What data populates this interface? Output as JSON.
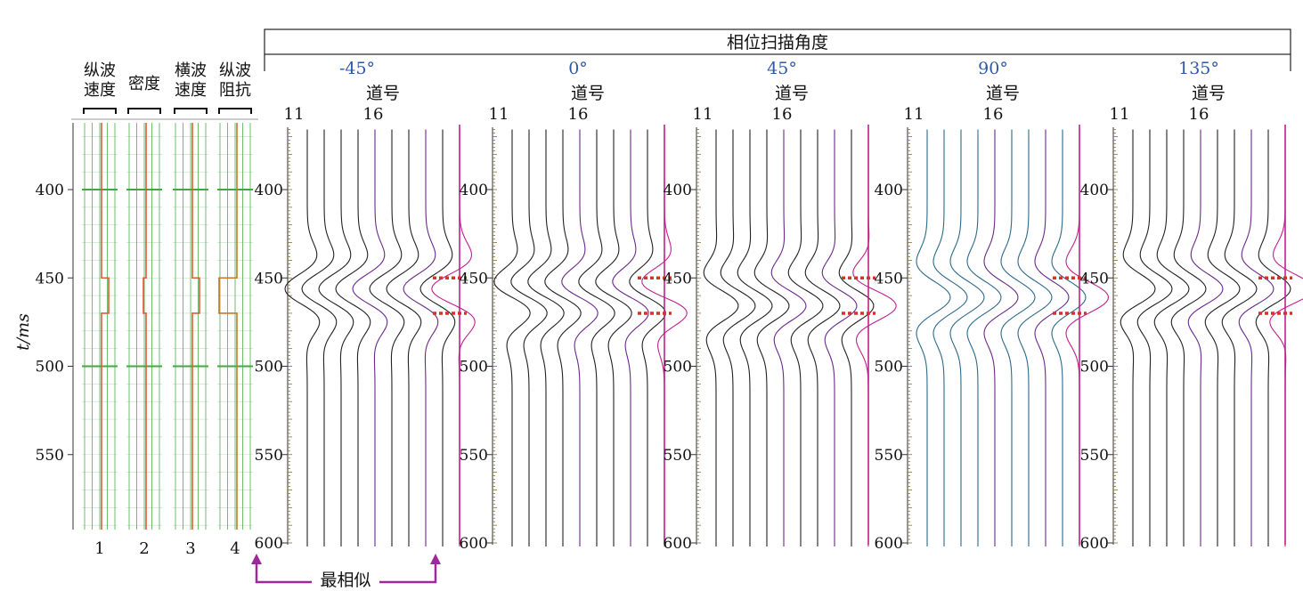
{
  "header": {
    "title": "相位扫描角度"
  },
  "y_axis": {
    "label": "t/ms",
    "ticks": [
      400,
      450,
      500,
      550,
      600
    ],
    "range": [
      363,
      602
    ]
  },
  "logs": {
    "columns": [
      {
        "label": "纵波\n速度",
        "number": "1"
      },
      {
        "label": "密度",
        "number": "2"
      },
      {
        "label": "横波\n速度",
        "number": "3"
      },
      {
        "label": "纵波\n阻抗",
        "number": "4"
      }
    ],
    "layer_top_ms": 450,
    "layer_bottom_ms": 470,
    "green_color": "#3faa3f",
    "red_color": "#e05a3a"
  },
  "panels": [
    {
      "angle": "-45°",
      "trace_label": "道号",
      "trace_ticks": [
        "11",
        "16"
      ],
      "phase_deg": -45
    },
    {
      "angle": "0°",
      "trace_label": "道号",
      "trace_ticks": [
        "11",
        "16"
      ],
      "phase_deg": 0
    },
    {
      "angle": "45°",
      "trace_label": "道号",
      "trace_ticks": [
        "11",
        "16"
      ],
      "phase_deg": 45
    },
    {
      "angle": "90°",
      "trace_label": "道号",
      "trace_ticks": [
        "11",
        "16"
      ],
      "phase_deg": 90
    },
    {
      "angle": "135°",
      "trace_label": "道号",
      "trace_ticks": [
        "11",
        "16"
      ],
      "phase_deg": 135
    }
  ],
  "annotation": {
    "label": "最相似",
    "color": "#a0289a"
  },
  "colors": {
    "angle_text": "#2f5aa8",
    "marker": "#d8312a",
    "magenta_trace": "#c0208f",
    "blue_trace": "#2d6a8a"
  }
}
